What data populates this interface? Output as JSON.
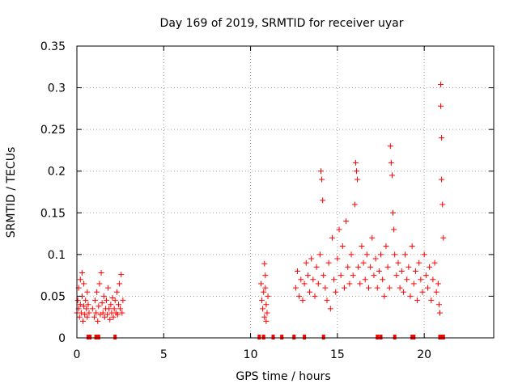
{
  "chart_data": {
    "type": "scatter",
    "title": "Day 169 of 2019, SRMTID for receiver uyar",
    "xlabel": "GPS time / hours",
    "ylabel": "SRMTID / TECUs",
    "xlim": [
      0,
      24
    ],
    "ylim": [
      0,
      0.35
    ],
    "xticks": [
      0,
      5,
      10,
      15,
      20
    ],
    "xtick_labels": [
      "0",
      "5",
      "10",
      "15",
      "20"
    ],
    "yticks": [
      0,
      0.05,
      0.1,
      0.15,
      0.2,
      0.25,
      0.3,
      0.35
    ],
    "ytick_labels": [
      "0",
      "0.05",
      "0.1",
      "0.15",
      "0.2",
      "0.25",
      "0.3",
      "0.35"
    ],
    "grid": true,
    "marker": "+",
    "color": "#ff0000",
    "series": [
      {
        "name": "SRMTID",
        "points": [
          [
            0.0,
            0.03
          ],
          [
            0.05,
            0.045
          ],
          [
            0.1,
            0.035
          ],
          [
            0.1,
            0.06
          ],
          [
            0.15,
            0.025
          ],
          [
            0.2,
            0.04
          ],
          [
            0.2,
            0.07
          ],
          [
            0.25,
            0.03
          ],
          [
            0.3,
            0.05
          ],
          [
            0.3,
            0.078
          ],
          [
            0.35,
            0.02
          ],
          [
            0.4,
            0.038
          ],
          [
            0.4,
            0.065
          ],
          [
            0.45,
            0.028
          ],
          [
            0.5,
            0.045
          ],
          [
            0.55,
            0.035
          ],
          [
            0.6,
            0.055
          ],
          [
            0.6,
            0.025
          ],
          [
            0.65,
            0.04
          ],
          [
            0.7,
            0.03
          ],
          [
            0.9,
            0.035
          ],
          [
            1.0,
            0.025
          ],
          [
            1.05,
            0.045
          ],
          [
            1.1,
            0.03
          ],
          [
            1.15,
            0.055
          ],
          [
            1.2,
            0.02
          ],
          [
            1.25,
            0.038
          ],
          [
            1.3,
            0.065
          ],
          [
            1.35,
            0.028
          ],
          [
            1.4,
            0.078
          ],
          [
            1.45,
            0.042
          ],
          [
            1.5,
            0.03
          ],
          [
            1.55,
            0.05
          ],
          [
            1.6,
            0.025
          ],
          [
            1.65,
            0.035
          ],
          [
            1.7,
            0.045
          ],
          [
            1.75,
            0.028
          ],
          [
            1.8,
            0.06
          ],
          [
            1.85,
            0.035
          ],
          [
            1.9,
            0.022
          ],
          [
            1.95,
            0.04
          ],
          [
            2.0,
            0.03
          ],
          [
            2.05,
            0.048
          ],
          [
            2.1,
            0.025
          ],
          [
            2.15,
            0.035
          ],
          [
            2.2,
            0.045
          ],
          [
            2.25,
            0.03
          ],
          [
            2.3,
            0.055
          ],
          [
            2.35,
            0.028
          ],
          [
            2.4,
            0.04
          ],
          [
            2.45,
            0.065
          ],
          [
            2.5,
            0.035
          ],
          [
            2.55,
            0.076
          ],
          [
            2.6,
            0.03
          ],
          [
            2.65,
            0.045
          ],
          [
            10.6,
            0.065
          ],
          [
            10.65,
            0.045
          ],
          [
            10.7,
            0.035
          ],
          [
            10.75,
            0.055
          ],
          [
            10.8,
            0.025
          ],
          [
            10.85,
            0.075
          ],
          [
            10.9,
            0.04
          ],
          [
            10.95,
            0.03
          ],
          [
            11.0,
            0.05
          ],
          [
            10.8,
            0.089
          ],
          [
            10.85,
            0.06
          ],
          [
            10.9,
            0.02
          ],
          [
            12.6,
            0.06
          ],
          [
            12.7,
            0.08
          ],
          [
            12.8,
            0.05
          ],
          [
            12.9,
            0.07
          ],
          [
            13.0,
            0.045
          ],
          [
            13.1,
            0.065
          ],
          [
            13.2,
            0.09
          ],
          [
            13.3,
            0.075
          ],
          [
            13.4,
            0.055
          ],
          [
            13.5,
            0.095
          ],
          [
            13.6,
            0.07
          ],
          [
            13.7,
            0.05
          ],
          [
            13.8,
            0.085
          ],
          [
            13.9,
            0.065
          ],
          [
            14.0,
            0.1
          ],
          [
            14.05,
            0.2
          ],
          [
            14.1,
            0.19
          ],
          [
            14.15,
            0.165
          ],
          [
            14.2,
            0.075
          ],
          [
            14.3,
            0.06
          ],
          [
            14.4,
            0.045
          ],
          [
            14.5,
            0.09
          ],
          [
            14.6,
            0.035
          ],
          [
            14.7,
            0.12
          ],
          [
            14.8,
            0.07
          ],
          [
            14.9,
            0.055
          ],
          [
            15.0,
            0.095
          ],
          [
            15.1,
            0.13
          ],
          [
            15.2,
            0.075
          ],
          [
            15.3,
            0.11
          ],
          [
            15.4,
            0.06
          ],
          [
            15.5,
            0.14
          ],
          [
            15.6,
            0.085
          ],
          [
            15.7,
            0.065
          ],
          [
            15.8,
            0.1
          ],
          [
            15.9,
            0.075
          ],
          [
            16.0,
            0.16
          ],
          [
            16.05,
            0.21
          ],
          [
            16.1,
            0.2
          ],
          [
            16.15,
            0.19
          ],
          [
            16.2,
            0.085
          ],
          [
            16.3,
            0.065
          ],
          [
            16.4,
            0.11
          ],
          [
            16.5,
            0.09
          ],
          [
            16.6,
            0.07
          ],
          [
            16.7,
            0.1
          ],
          [
            16.8,
            0.06
          ],
          [
            16.9,
            0.085
          ],
          [
            17.0,
            0.12
          ],
          [
            17.1,
            0.075
          ],
          [
            17.2,
            0.095
          ],
          [
            17.3,
            0.06
          ],
          [
            17.4,
            0.08
          ],
          [
            17.5,
            0.1
          ],
          [
            17.6,
            0.07
          ],
          [
            17.7,
            0.05
          ],
          [
            17.8,
            0.11
          ],
          [
            17.9,
            0.085
          ],
          [
            18.0,
            0.06
          ],
          [
            18.05,
            0.23
          ],
          [
            18.1,
            0.21
          ],
          [
            18.15,
            0.195
          ],
          [
            18.2,
            0.15
          ],
          [
            18.25,
            0.13
          ],
          [
            18.3,
            0.1
          ],
          [
            18.4,
            0.075
          ],
          [
            18.5,
            0.09
          ],
          [
            18.6,
            0.06
          ],
          [
            18.7,
            0.08
          ],
          [
            18.8,
            0.055
          ],
          [
            18.9,
            0.1
          ],
          [
            19.0,
            0.07
          ],
          [
            19.1,
            0.085
          ],
          [
            19.2,
            0.05
          ],
          [
            19.3,
            0.11
          ],
          [
            19.4,
            0.065
          ],
          [
            19.5,
            0.08
          ],
          [
            19.6,
            0.045
          ],
          [
            19.7,
            0.09
          ],
          [
            19.8,
            0.07
          ],
          [
            19.9,
            0.055
          ],
          [
            20.0,
            0.1
          ],
          [
            20.1,
            0.075
          ],
          [
            20.2,
            0.06
          ],
          [
            20.3,
            0.085
          ],
          [
            20.4,
            0.045
          ],
          [
            20.5,
            0.07
          ],
          [
            20.6,
            0.09
          ],
          [
            20.7,
            0.055
          ],
          [
            20.8,
            0.065
          ],
          [
            20.85,
            0.04
          ],
          [
            20.9,
            0.03
          ],
          [
            20.95,
            0.304
          ],
          [
            20.95,
            0.278
          ],
          [
            21.0,
            0.24
          ],
          [
            21.0,
            0.19
          ],
          [
            21.05,
            0.16
          ],
          [
            21.1,
            0.12
          ]
        ]
      }
    ],
    "rug": [
      0.65,
      0.75,
      1.1,
      1.25,
      2.2,
      10.5,
      10.75,
      11.3,
      11.8,
      12.5,
      13.1,
      14.2,
      17.3,
      17.5,
      18.3,
      19.3,
      19.4,
      20.9,
      21.0,
      21.1
    ]
  }
}
